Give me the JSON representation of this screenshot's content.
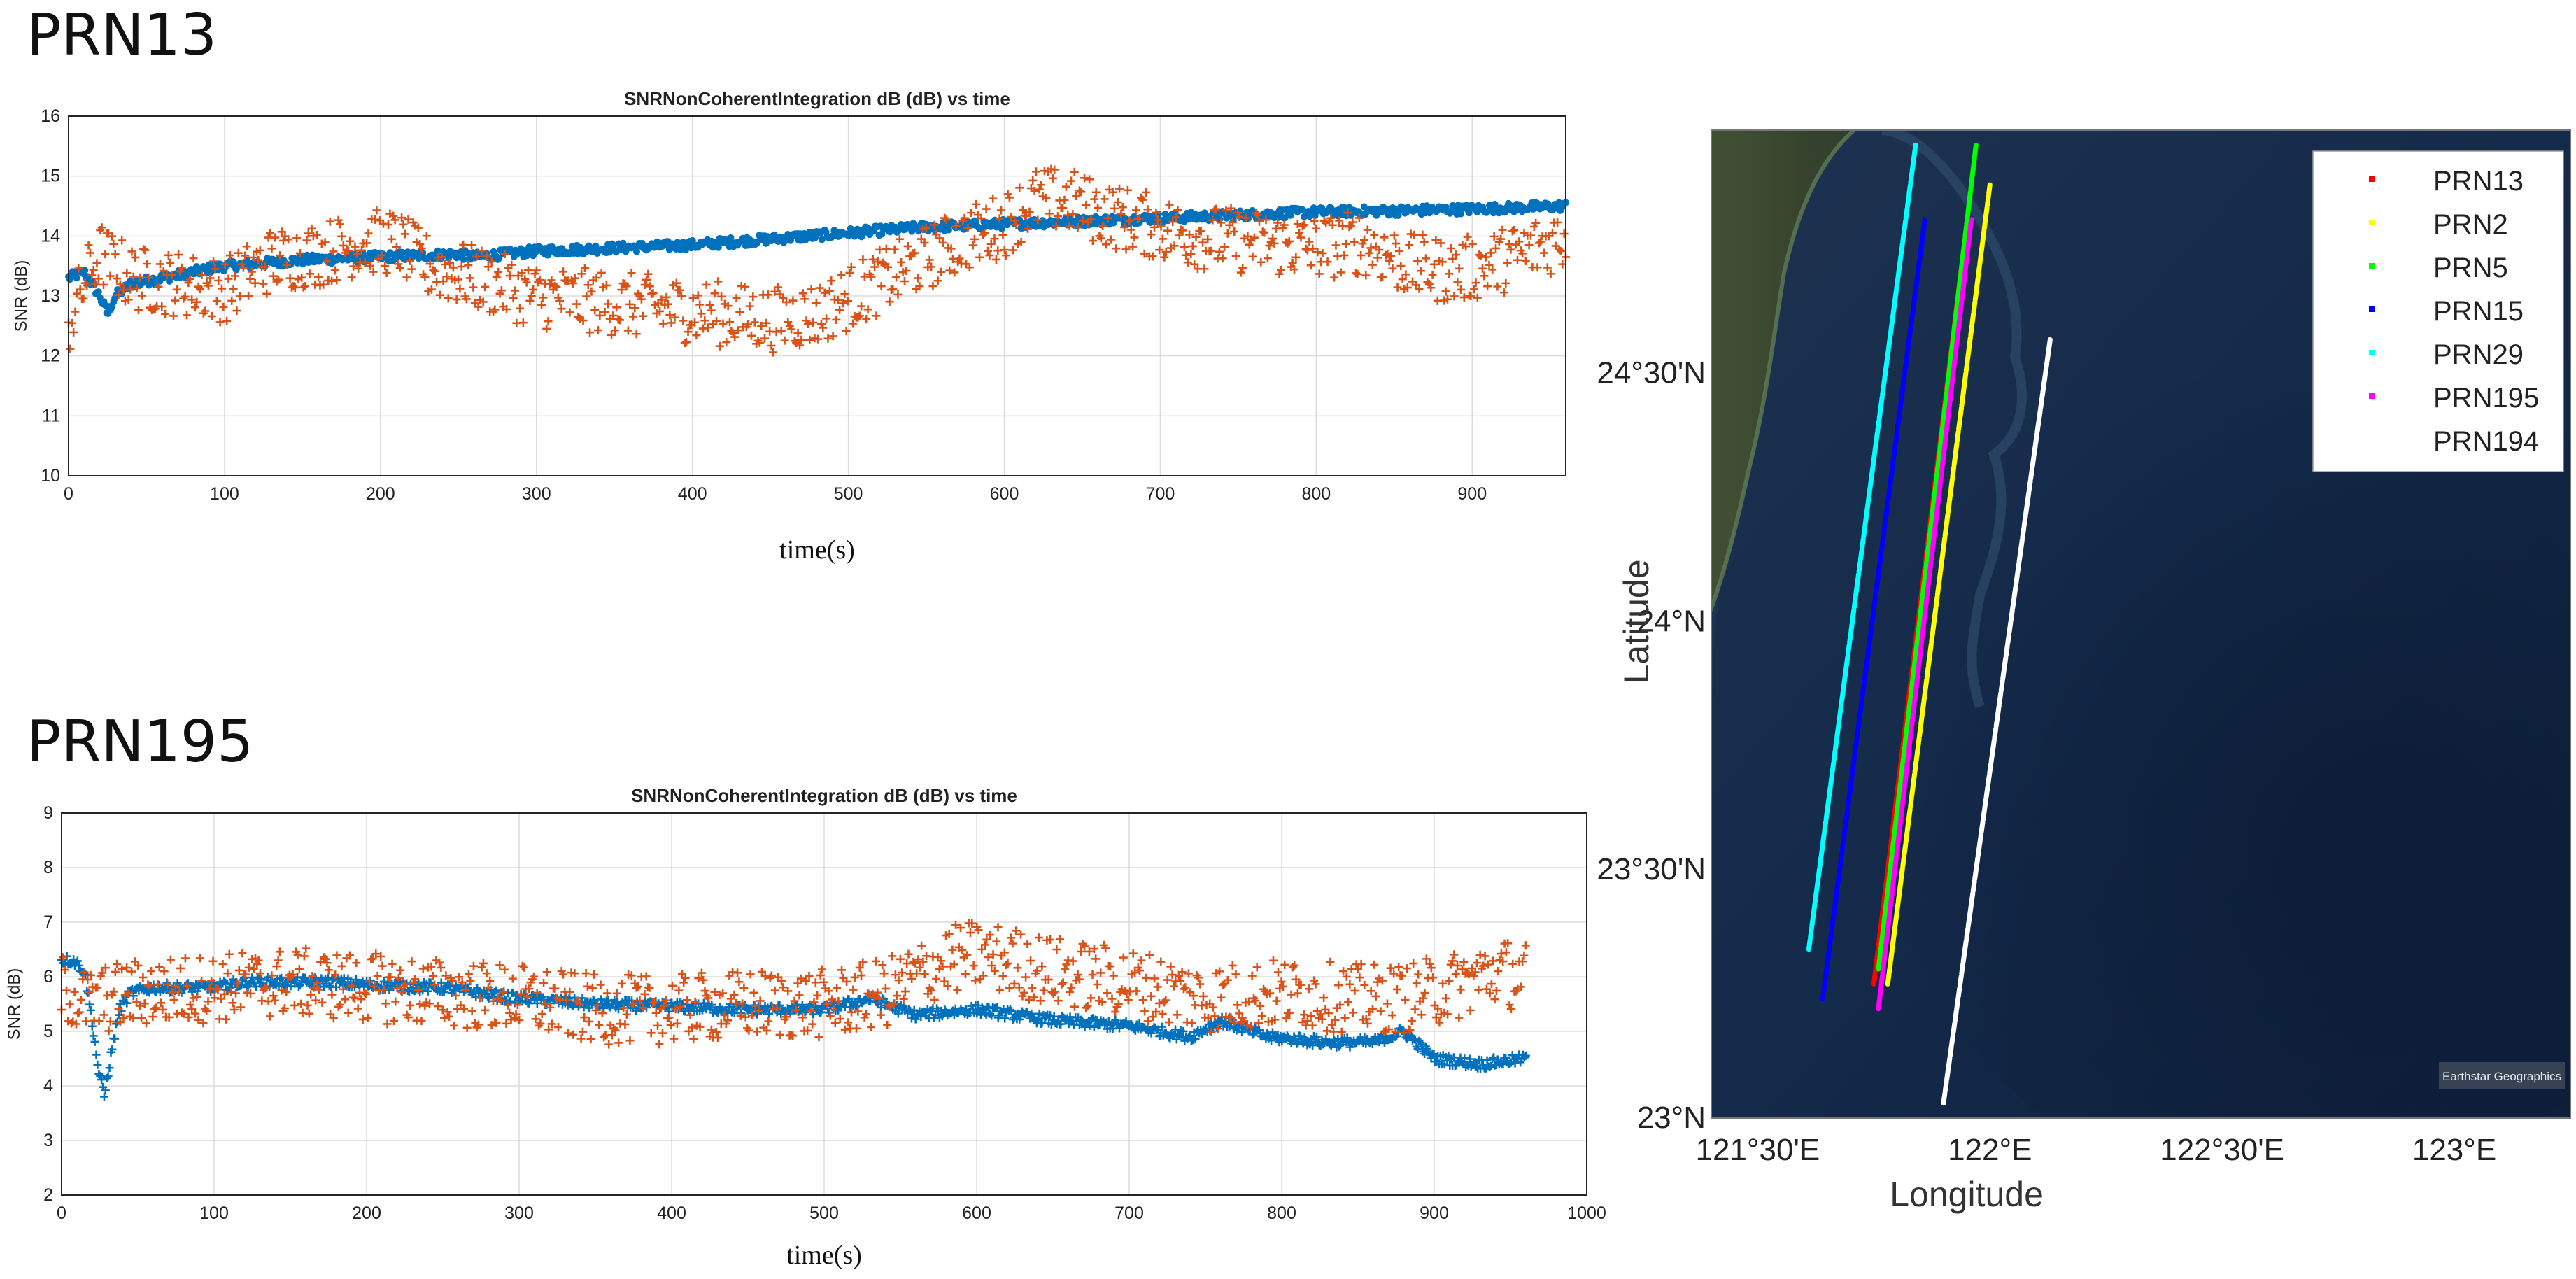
{
  "headings": {
    "top": "PRN13",
    "bottom": "PRN195"
  },
  "map": {
    "credit": "Earthstar Geographics",
    "xlabel": "Longitude",
    "ylabel": "Latitude",
    "lon_ticks": [
      "121°30'E",
      "122°E",
      "122°30'E",
      "123°E"
    ],
    "lat_ticks": [
      "23°N",
      "23°30'N",
      "24°N",
      "24°30'N"
    ]
  },
  "chart_data": [
    {
      "type": "scatter",
      "title": "SNRNonCoherentIntegration dB (dB) vs time",
      "heading": "PRN13",
      "xlabel": "time(s)",
      "ylabel": "SNR (dB)",
      "xlim": [
        0,
        960
      ],
      "ylim": [
        10,
        16
      ],
      "xticks": [
        0,
        100,
        200,
        300,
        400,
        500,
        600,
        700,
        800,
        900
      ],
      "yticks": [
        10,
        11,
        12,
        13,
        14,
        15,
        16
      ],
      "grid": true,
      "series": [
        {
          "name": "blue",
          "color": "#0072BD",
          "marker": "dot",
          "x": [
            0,
            10,
            20,
            25,
            30,
            40,
            60,
            80,
            100,
            150,
            200,
            250,
            260,
            300,
            350,
            400,
            450,
            500,
            550,
            600,
            650,
            700,
            750,
            800,
            850,
            900,
            960
          ],
          "y": [
            13.3,
            13.4,
            13.0,
            12.7,
            13.0,
            13.2,
            13.3,
            13.4,
            13.5,
            13.6,
            13.65,
            13.7,
            13.65,
            13.75,
            13.8,
            13.85,
            13.95,
            14.05,
            14.15,
            14.2,
            14.25,
            14.3,
            14.35,
            14.4,
            14.42,
            14.45,
            14.5
          ]
        },
        {
          "name": "orange",
          "color": "#D95319",
          "marker": "plus",
          "x": [
            0,
            10,
            20,
            40,
            70,
            100,
            130,
            160,
            190,
            210,
            230,
            260,
            300,
            340,
            380,
            420,
            450,
            480,
            510,
            540,
            570,
            600,
            620,
            640,
            660,
            690,
            720,
            760,
            800,
            830,
            860,
            890,
            920,
            960
          ],
          "y": [
            12.5,
            13.2,
            13.7,
            13.3,
            13.2,
            13.1,
            13.6,
            13.7,
            13.9,
            13.9,
            13.5,
            13.3,
            13.0,
            12.9,
            12.8,
            12.7,
            12.6,
            12.7,
            13.1,
            13.5,
            13.9,
            14.2,
            14.6,
            14.6,
            14.4,
            14.2,
            14.0,
            13.9,
            13.8,
            13.9,
            13.5,
            13.4,
            13.6,
            14.0
          ]
        }
      ]
    },
    {
      "type": "scatter",
      "title": "SNRNonCoherentIntegration dB (dB) vs time",
      "heading": "PRN195",
      "xlabel": "time(s)",
      "ylabel": "SNR (dB)",
      "xlim": [
        0,
        1000
      ],
      "ylim": [
        2,
        9
      ],
      "xticks": [
        0,
        100,
        200,
        300,
        400,
        500,
        600,
        700,
        800,
        900,
        1000
      ],
      "yticks": [
        2,
        3,
        4,
        5,
        6,
        7,
        8,
        9
      ],
      "grid": true,
      "series": [
        {
          "name": "blue",
          "color": "#0072BD",
          "marker": "plus",
          "x": [
            0,
            8,
            15,
            20,
            24,
            28,
            32,
            38,
            45,
            60,
            80,
            100,
            120,
            150,
            180,
            200,
            250,
            300,
            350,
            400,
            450,
            500,
            530,
            560,
            600,
            650,
            700,
            740,
            760,
            790,
            830,
            860,
            880,
            900,
            930,
            960
          ],
          "y": [
            6.3,
            6.3,
            6.1,
            5.2,
            4.3,
            3.8,
            4.5,
            5.4,
            5.7,
            5.8,
            5.8,
            5.8,
            5.9,
            5.9,
            5.9,
            5.85,
            5.8,
            5.6,
            5.5,
            5.45,
            5.4,
            5.4,
            5.6,
            5.3,
            5.4,
            5.2,
            5.1,
            4.9,
            5.2,
            4.9,
            4.8,
            4.8,
            5.0,
            4.5,
            4.4,
            4.5
          ]
        },
        {
          "name": "orange",
          "color": "#D95319",
          "marker": "plus",
          "x": [
            0,
            10,
            20,
            30,
            50,
            100,
            150,
            200,
            250,
            300,
            350,
            400,
            450,
            500,
            540,
            560,
            580,
            600,
            620,
            650,
            700,
            750,
            800,
            850,
            880,
            910,
            940,
            960
          ],
          "y": [
            5.8,
            5.6,
            5.5,
            5.6,
            5.7,
            5.8,
            5.9,
            5.8,
            5.7,
            5.6,
            5.4,
            5.4,
            5.5,
            5.5,
            5.7,
            6.0,
            6.3,
            6.4,
            6.3,
            6.1,
            5.9,
            5.6,
            5.7,
            5.6,
            5.6,
            5.8,
            6.1,
            6.0
          ]
        }
      ]
    },
    {
      "type": "line",
      "title": "",
      "xlabel": "Longitude",
      "ylabel": "Latitude",
      "xlim": [
        121.4,
        123.25
      ],
      "ylim": [
        23.0,
        24.99
      ],
      "legend_position": "top-right",
      "series": [
        {
          "name": "PRN13",
          "color": "#FF0000",
          "lon": [
            121.75,
            121.95
          ],
          "lat": [
            23.27,
            24.8
          ]
        },
        {
          "name": "PRN2",
          "color": "#FFFF00",
          "lon": [
            121.78,
            122.0
          ],
          "lat": [
            23.27,
            24.88
          ]
        },
        {
          "name": "PRN5",
          "color": "#00FF00",
          "lon": [
            121.76,
            121.97
          ],
          "lat": [
            23.3,
            24.96
          ]
        },
        {
          "name": "PRN15",
          "color": "#0000FF",
          "lon": [
            121.64,
            121.86
          ],
          "lat": [
            23.24,
            24.81
          ]
        },
        {
          "name": "PRN29",
          "color": "#00FFFF",
          "lon": [
            121.61,
            121.84
          ],
          "lat": [
            23.34,
            24.96
          ]
        },
        {
          "name": "PRN195",
          "color": "#FF00FF",
          "lon": [
            121.76,
            121.96
          ],
          "lat": [
            23.22,
            24.81
          ]
        },
        {
          "name": "PRN194",
          "color": "#FFFFFF",
          "lon": [
            121.9,
            122.13
          ],
          "lat": [
            23.03,
            24.57
          ]
        }
      ]
    }
  ]
}
